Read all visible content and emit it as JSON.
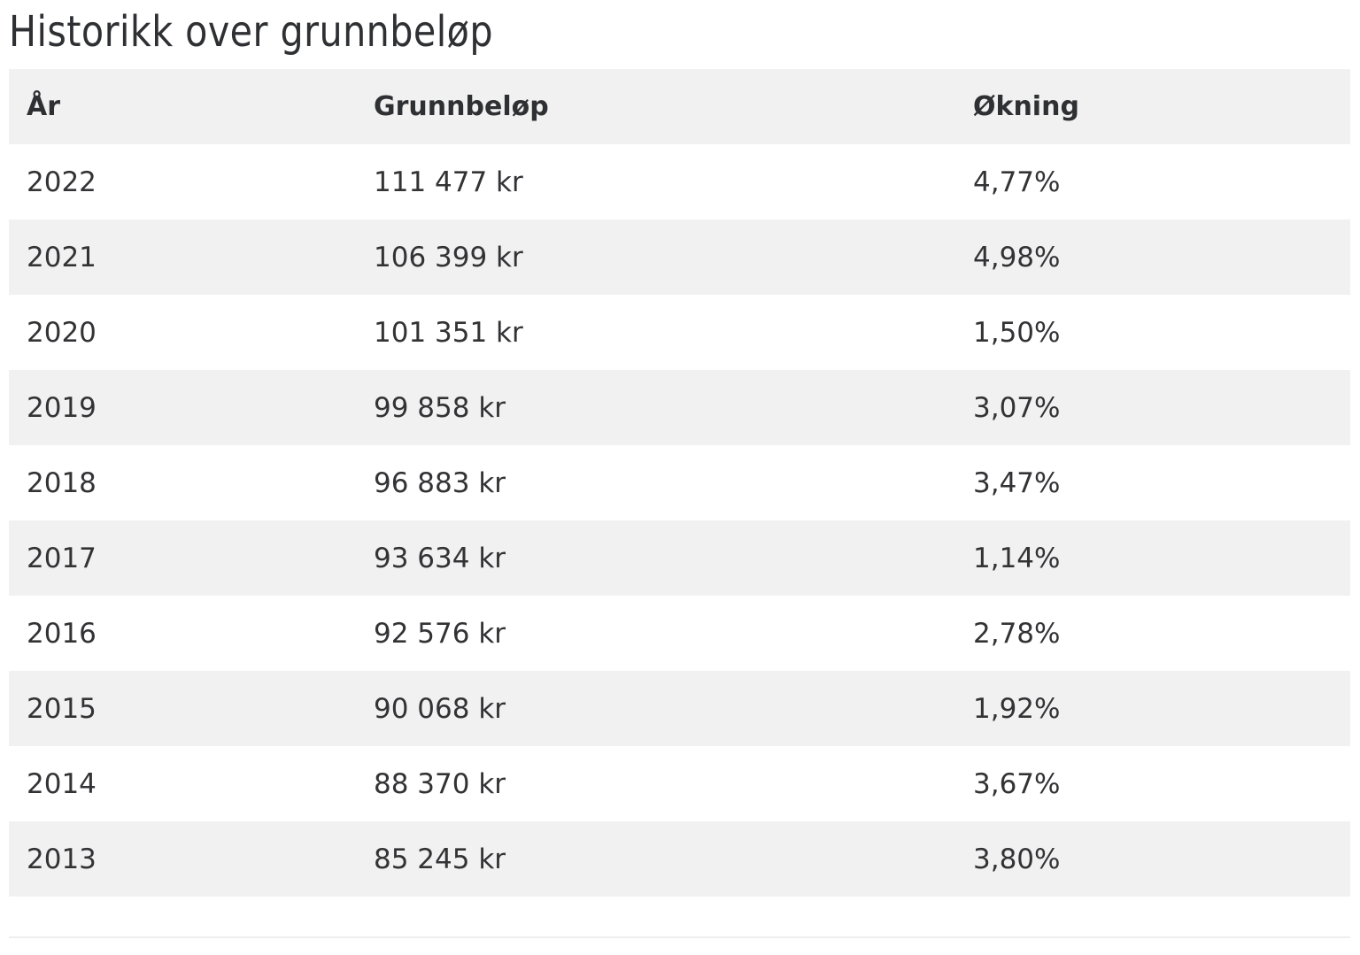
{
  "page": {
    "title": "Historikk over grunnbeløp"
  },
  "table": {
    "headers": [
      "År",
      "Grunnbeløp",
      "Økning"
    ],
    "rows": [
      [
        "2022",
        "111 477 kr",
        "4,77%"
      ],
      [
        "2021",
        "106 399 kr",
        "4,98%"
      ],
      [
        "2020",
        "101 351 kr",
        "1,50%"
      ],
      [
        "2019",
        "99 858 kr",
        "3,07%"
      ],
      [
        "2018",
        "96 883 kr",
        "3,47%"
      ],
      [
        "2017",
        "93 634 kr",
        "1,14%"
      ],
      [
        "2016",
        "92 576 kr",
        "2,78%"
      ],
      [
        "2015",
        "90 068 kr",
        "1,92%"
      ],
      [
        "2014",
        "88 370 kr",
        "3,67%"
      ],
      [
        "2013",
        "85 245 kr",
        "3,80%"
      ]
    ]
  },
  "colors": {
    "text": "#2f3033",
    "stripe": "#f1f1f1",
    "background": "#ffffff"
  }
}
